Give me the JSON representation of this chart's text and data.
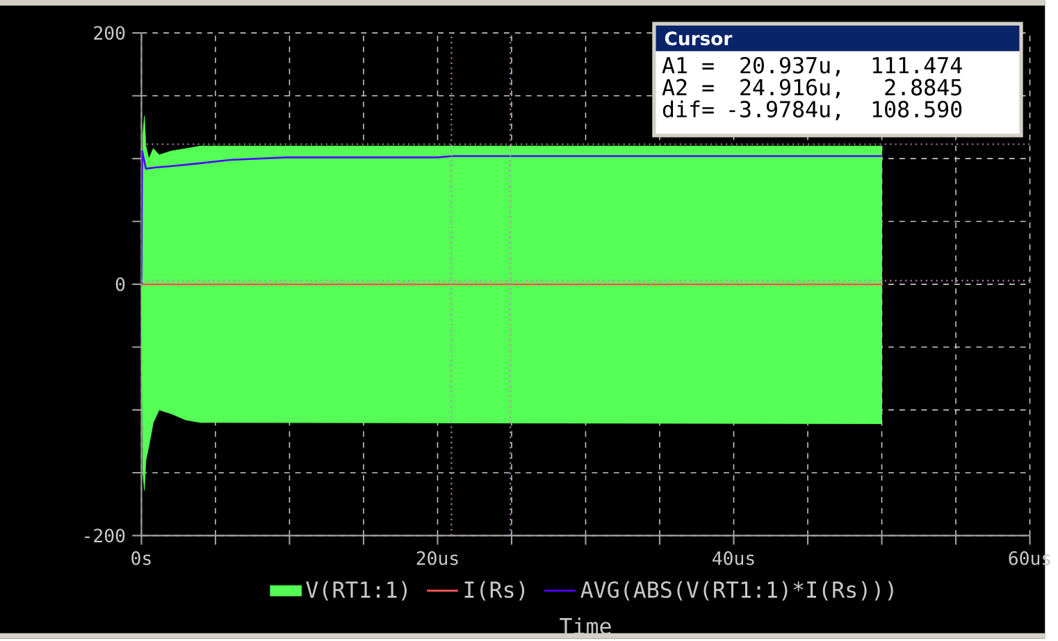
{
  "chart_data": {
    "type": "line",
    "xlabel": "Time",
    "xlim": [
      0,
      60
    ],
    "ylim": [
      -200,
      200
    ],
    "xticks": [
      {
        "value": 0,
        "label": "0s"
      },
      {
        "value": 5,
        "label": null
      },
      {
        "value": 10,
        "label": null
      },
      {
        "value": 15,
        "label": null
      },
      {
        "value": 20,
        "label": "20us"
      },
      {
        "value": 25,
        "label": null
      },
      {
        "value": 30,
        "label": null
      },
      {
        "value": 35,
        "label": null
      },
      {
        "value": 40,
        "label": "40us"
      },
      {
        "value": 45,
        "label": null
      },
      {
        "value": 50,
        "label": null
      },
      {
        "value": 55,
        "label": null
      },
      {
        "value": 60,
        "label": "60us"
      }
    ],
    "yticks": [
      {
        "value": -200,
        "label": "-200"
      },
      {
        "value": -150,
        "label": null
      },
      {
        "value": -100,
        "label": null
      },
      {
        "value": -50,
        "label": null
      },
      0,
      {
        "value": 50,
        "label": null
      },
      {
        "value": 100,
        "label": null
      },
      {
        "value": 150,
        "label": null
      },
      200
    ],
    "grid": true,
    "legend": "bottom",
    "series": [
      {
        "name": "V(RT1:1)",
        "type": "area",
        "color": "#55ff55",
        "x": [
          0,
          0.1,
          0.2,
          0.3,
          0.5,
          0.8,
          1.2,
          2,
          3,
          4,
          50
        ],
        "values": [
          0,
          120,
          134,
          110,
          100,
          108,
          103,
          106,
          108,
          110,
          110
        ]
      },
      {
        "type": "area",
        "color": "#55ff55",
        "x": [
          0,
          0.1,
          0.2,
          0.3,
          0.5,
          0.8,
          1.2,
          2,
          3,
          4,
          50
        ],
        "values": [
          0,
          -150,
          -164,
          -140,
          -129,
          -110,
          -100,
          -103,
          -108,
          -110,
          -111
        ]
      },
      {
        "name": "I(Rs)",
        "color": "#ff5555",
        "x": [
          0,
          50
        ],
        "values": [
          0,
          0
        ]
      },
      {
        "name": "AVG(ABS(V(RT1:1)*I(Rs)))",
        "color": "#5000ff",
        "x": [
          0,
          0.05,
          0.3,
          1,
          2,
          3.7,
          6,
          9.8,
          15,
          20,
          21,
          50
        ],
        "values": [
          0,
          106,
          92,
          93,
          94,
          96,
          99,
          101,
          101,
          101,
          102,
          102
        ]
      }
    ],
    "ref_lines": [
      {
        "axis": "x",
        "value": 20.937,
        "color": "#c080c0",
        "line_style": "dotted"
      },
      {
        "axis": "x",
        "value": 24.916,
        "color": "#c080c0",
        "line_style": "dotted"
      },
      {
        "axis": "y",
        "value": 111.474,
        "color": "#c080c0",
        "line_style": "dotted"
      },
      {
        "axis": "y",
        "value": 2.8845,
        "color": "#c080c0",
        "line_style": "dotted"
      }
    ],
    "annotations": [
      "Cursor",
      "A1 =",
      "20.937u,",
      "111.474",
      "A2 =",
      "24.916u,",
      "2.8845",
      "dif=",
      "-3.9784u,",
      "108.590"
    ]
  }
}
